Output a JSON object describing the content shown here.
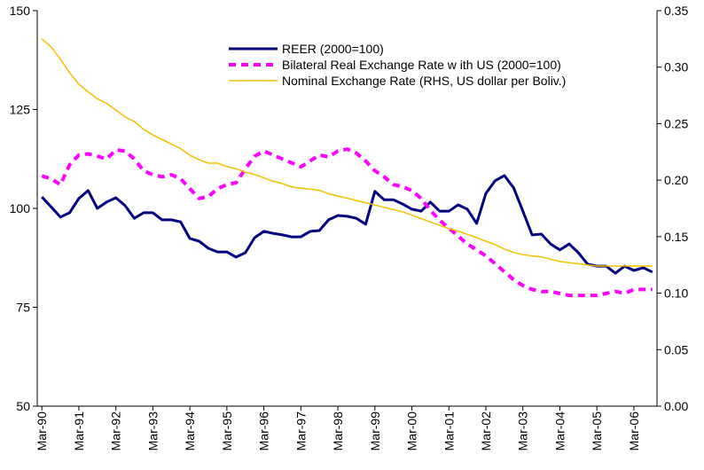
{
  "chart_data": {
    "type": "line",
    "categories": [
      "Mar-90",
      null,
      null,
      null,
      "Mar-91",
      null,
      null,
      null,
      "Mar-92",
      null,
      null,
      null,
      "Mar-93",
      null,
      null,
      null,
      "Mar-94",
      null,
      null,
      null,
      "Mar-95",
      null,
      null,
      null,
      "Mar-96",
      null,
      null,
      null,
      "Mar-97",
      null,
      null,
      null,
      "Mar-98",
      null,
      null,
      null,
      "Mar-99",
      null,
      null,
      null,
      "Mar-00",
      null,
      null,
      null,
      "Mar-01",
      null,
      null,
      null,
      "Mar-02",
      null,
      null,
      null,
      "Mar-03",
      null,
      null,
      null,
      "Mar-04",
      null,
      null,
      null,
      "Mar-05",
      null,
      null,
      null,
      "Mar-06",
      null,
      null
    ],
    "series": [
      {
        "name": "REER  (2000=100)",
        "color": "#000080",
        "style": "solid",
        "axis": "y",
        "values": [
          102.9,
          100.4,
          97.8,
          98.9,
          102.5,
          104.5,
          100,
          101.6,
          102.7,
          100.7,
          97.5,
          98.9,
          98.9,
          97.1,
          97.1,
          96.6,
          92.4,
          91.7,
          89.9,
          89,
          89,
          87.7,
          88.8,
          92.6,
          94.2,
          93.7,
          93.3,
          92.8,
          92.8,
          94.2,
          94.4,
          97.1,
          98.2,
          98,
          97.5,
          96,
          104.3,
          102.2,
          102.2,
          101.1,
          99.8,
          99.3,
          101.6,
          99.3,
          99.3,
          100.9,
          99.8,
          96.2,
          103.8,
          107,
          108.3,
          105.2,
          99.3,
          93.3,
          93.5,
          91,
          89.5,
          91,
          88.8,
          85.9,
          85.4,
          85.4,
          83.6,
          85.4,
          84.3,
          85,
          83.9
        ]
      },
      {
        "name": "Bilateral Real Exchange Rate w ith US (2000=100)",
        "color": "#ff00ff",
        "style": "dashed",
        "axis": "y",
        "values": [
          108.2,
          107.5,
          106,
          111,
          113.5,
          113.8,
          113.2,
          112.5,
          114.8,
          114.5,
          112.5,
          109.5,
          108.5,
          108,
          108.5,
          107.5,
          105,
          102.5,
          103,
          105,
          106,
          106.5,
          110,
          113.2,
          114.5,
          113.5,
          112.5,
          111.5,
          110.5,
          112,
          113.5,
          113,
          114.5,
          115,
          114,
          112,
          109.5,
          108,
          106,
          105.5,
          104.5,
          102.5,
          99.5,
          97,
          95,
          93,
          91,
          89.5,
          88,
          86,
          84,
          82,
          80.5,
          79.5,
          79,
          79,
          78.5,
          78,
          78,
          78,
          78,
          78.5,
          79,
          78.5,
          79.5,
          79.5,
          79.5
        ]
      },
      {
        "name": "Nominal Exchange Rate (RHS, US dollar per Boliv.)",
        "color": "#f0c000",
        "style": "thin",
        "axis": "y2",
        "values": [
          0.325,
          0.318,
          0.307,
          0.295,
          0.285,
          0.278,
          0.272,
          0.268,
          0.262,
          0.256,
          0.252,
          0.245,
          0.24,
          0.236,
          0.232,
          0.228,
          0.222,
          0.218,
          0.215,
          0.215,
          0.212,
          0.21,
          0.207,
          0.205,
          0.202,
          0.199,
          0.197,
          0.194,
          0.193,
          0.192,
          0.191,
          0.188,
          0.186,
          0.184,
          0.182,
          0.18,
          0.178,
          0.176,
          0.174,
          0.172,
          0.169,
          0.166,
          0.163,
          0.16,
          0.157,
          0.155,
          0.152,
          0.149,
          0.146,
          0.143,
          0.139,
          0.136,
          0.134,
          0.133,
          0.132,
          0.13,
          0.128,
          0.127,
          0.126,
          0.125,
          0.124,
          0.124,
          0.124,
          0.124,
          0.124,
          0.124,
          0.124
        ]
      }
    ],
    "ylim": [
      50,
      150
    ],
    "yticks": [
      50,
      75,
      100,
      125,
      150
    ],
    "y2lim": [
      0,
      0.35
    ],
    "y2ticks": [
      {
        "value": 0,
        "label": "0.00"
      },
      0.05,
      {
        "value": 0.1,
        "label": "0.10"
      },
      0.15,
      {
        "value": 0.2,
        "label": "0.20"
      },
      0.25,
      {
        "value": 0.3,
        "label": "0.30"
      },
      0.35
    ],
    "grid": false,
    "legend": "top"
  }
}
